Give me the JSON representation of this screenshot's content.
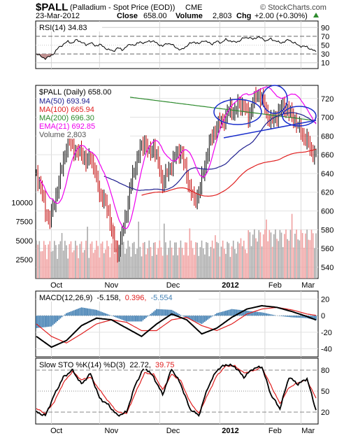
{
  "header": {
    "ticker": "$PALL",
    "name": "(Palladium - Spot Price (EOD))",
    "exchange": "CME",
    "watermark": "© StockCharts.com",
    "date": "23-Mar-2012",
    "close_label": "Close",
    "close_value": "658.00",
    "volume_label": "Volume",
    "volume_value": "2,803",
    "chg_label": "Chg",
    "chg_value": "+2.00 (+0.30%)",
    "chg_arrow": "up-triangle-icon"
  },
  "rsi": {
    "label": "RSI(14) 34.83",
    "axis_ticks": [
      "90",
      "70",
      "50",
      "30",
      "10"
    ],
    "ylim": [
      0,
      100
    ],
    "overbought": 70,
    "oversold": 30
  },
  "price": {
    "legend": {
      "title": "$PALL (Daily) 658.00",
      "ma50": "MA(50) 693.94",
      "ma100": "MA(100) 665.94",
      "ma200": "MA(200) 696.30",
      "ema21": "EMA(21) 692.85",
      "volume": "Volume 2,803"
    },
    "right_ticks": [
      "720",
      "700",
      "680",
      "660",
      "640",
      "620",
      "600",
      "580",
      "560",
      "540"
    ],
    "left_ticks": [
      "10000",
      "7500",
      "5000",
      "2500"
    ],
    "ylim": [
      528,
      734
    ],
    "volume_max": 14000
  },
  "macd": {
    "label_prefix": "MACD(12,26,9)",
    "macd_value": "-5.158,",
    "signal_value": "0.396,",
    "hist_value": "-5.554",
    "axis_ticks": [
      "20",
      "0",
      "-20",
      "-40"
    ],
    "ylim": [
      -48,
      28
    ]
  },
  "sto": {
    "label_prefix": "Slow STO %K(14) %D(3)",
    "k_value": "22.72,",
    "d_value": "39.75",
    "axis_ticks": [
      "80",
      "50",
      "20"
    ],
    "ylim": [
      5,
      95
    ]
  },
  "x_axis": {
    "labels_top": [
      "Oct",
      "Nov",
      "Dec",
      "2012",
      "Feb",
      "Mar"
    ],
    "labels_bottom": [
      "Oct",
      "Nov",
      "Dec",
      "2012",
      "Feb",
      "Mar"
    ]
  },
  "colors": {
    "ma50": "#1f1f8f",
    "ma100": "#e02020",
    "ma200": "#2e8b2e",
    "ema21": "#ee00ee",
    "vol_up": "#a9a9a9",
    "vol_down": "#f0a0a0",
    "bar_up": "#000000",
    "bar_down": "#c00000",
    "rsi_fill": "#c09090",
    "macd_hist": "#4682b4",
    "signal": "#e02020",
    "highlight": "#1a2ecc"
  },
  "chart_data": [
    {
      "type": "line",
      "title": "RSI(14) 34.83",
      "x": [
        0,
        3,
        6,
        9,
        12,
        15,
        18,
        21,
        24,
        27,
        30,
        33,
        36,
        39,
        42,
        45,
        48,
        51,
        54,
        57,
        60,
        63,
        66,
        69,
        72,
        75,
        78,
        81,
        84,
        87,
        90,
        93,
        96,
        99,
        102,
        105,
        108,
        111,
        114,
        117,
        120,
        123,
        126,
        129,
        132,
        135,
        138,
        141,
        144,
        147,
        150,
        153,
        156,
        159,
        162,
        165,
        168,
        171,
        174,
        177,
        180,
        183,
        186
      ],
      "series": [
        {
          "name": "RSI(14)",
          "values": [
            31,
            24,
            20,
            24,
            33,
            45,
            52,
            58,
            55,
            62,
            57,
            50,
            56,
            48,
            52,
            45,
            40,
            36,
            44,
            39,
            47,
            52,
            50,
            58,
            54,
            60,
            58,
            53,
            47,
            55,
            51,
            45,
            38,
            46,
            53,
            58,
            52,
            61,
            56,
            53,
            58,
            56,
            62,
            60,
            56,
            60,
            66,
            68,
            63,
            69,
            65,
            60,
            64,
            60,
            55,
            58,
            62,
            56,
            50,
            47,
            46,
            40,
            35
          ]
        }
      ]
    },
    {
      "type": "line",
      "title": "$PALL (Daily) 658.00",
      "x": [
        0,
        3,
        6,
        9,
        12,
        15,
        18,
        21,
        24,
        27,
        30,
        33,
        36,
        39,
        42,
        45,
        48,
        51,
        54,
        57,
        60,
        63,
        66,
        69,
        72,
        75,
        78,
        81,
        84,
        87,
        90,
        93,
        96,
        99,
        102,
        105,
        108,
        111,
        114,
        117,
        120,
        123,
        126,
        129,
        132,
        135,
        138,
        141,
        144,
        147,
        150,
        153,
        156,
        159,
        162,
        165,
        168,
        171,
        174,
        177,
        180,
        183,
        186
      ],
      "series": [
        {
          "name": "Close",
          "values": [
            640,
            625,
            600,
            590,
            610,
            630,
            655,
            675,
            670,
            660,
            665,
            650,
            660,
            640,
            620,
            610,
            600,
            570,
            555,
            575,
            600,
            630,
            650,
            665,
            675,
            660,
            670,
            650,
            630,
            640,
            650,
            660,
            665,
            645,
            625,
            610,
            620,
            640,
            665,
            680,
            690,
            695,
            700,
            710,
            705,
            715,
            712,
            700,
            715,
            725,
            720,
            705,
            695,
            700,
            708,
            712,
            705,
            700,
            690,
            682,
            674,
            665,
            658
          ]
        },
        {
          "name": "MA(50)",
          "values": [
            null,
            null,
            null,
            null,
            null,
            null,
            null,
            null,
            null,
            null,
            null,
            null,
            null,
            null,
            null,
            null,
            null,
            null,
            null,
            null,
            null,
            null,
            null,
            null,
            null,
            null,
            null,
            null,
            null,
            null,
            null,
            null,
            null,
            null,
            null,
            null,
            null,
            null,
            null,
            null,
            null,
            null,
            null,
            null,
            null,
            null,
            null,
            null,
            null,
            null,
            null,
            null,
            null,
            null,
            null,
            null,
            null,
            null,
            null,
            null,
            null,
            null,
            693.94
          ]
        },
        {
          "name": "MA(100)",
          "values": [
            null,
            null,
            null,
            null,
            null,
            null,
            null,
            null,
            null,
            null,
            null,
            null,
            null,
            null,
            null,
            null,
            null,
            null,
            null,
            null,
            null,
            null,
            null,
            null,
            null,
            null,
            null,
            null,
            null,
            null,
            null,
            null,
            null,
            null,
            null,
            null,
            null,
            null,
            null,
            null,
            null,
            null,
            null,
            null,
            null,
            null,
            null,
            null,
            null,
            null,
            null,
            null,
            null,
            null,
            null,
            null,
            null,
            null,
            null,
            null,
            null,
            null,
            665.94
          ]
        },
        {
          "name": "MA(200)",
          "values": [
            null,
            null,
            null,
            null,
            null,
            null,
            null,
            null,
            null,
            null,
            null,
            null,
            null,
            null,
            null,
            null,
            null,
            null,
            null,
            null,
            null,
            null,
            null,
            null,
            null,
            null,
            null,
            null,
            null,
            null,
            null,
            null,
            null,
            null,
            null,
            null,
            null,
            null,
            null,
            null,
            null,
            null,
            null,
            null,
            null,
            null,
            null,
            null,
            null,
            null,
            null,
            null,
            null,
            null,
            null,
            null,
            null,
            null,
            null,
            null,
            null,
            null,
            696.3
          ]
        },
        {
          "name": "EMA(21)",
          "values": [
            null,
            null,
            null,
            null,
            null,
            null,
            null,
            null,
            null,
            null,
            null,
            null,
            null,
            null,
            null,
            null,
            null,
            null,
            null,
            null,
            null,
            null,
            null,
            null,
            null,
            null,
            null,
            null,
            null,
            null,
            null,
            null,
            null,
            null,
            null,
            null,
            null,
            null,
            null,
            null,
            null,
            null,
            null,
            null,
            null,
            null,
            null,
            null,
            null,
            null,
            null,
            null,
            null,
            null,
            null,
            null,
            null,
            null,
            null,
            null,
            null,
            null,
            692.85
          ]
        }
      ],
      "ylim": [
        528,
        734
      ]
    },
    {
      "type": "line",
      "title": "MACD(12,26,9) -5.158, 0.396, -5.554",
      "x": [
        0,
        10,
        20,
        30,
        40,
        50,
        60,
        70,
        80,
        90,
        100,
        110,
        120,
        130,
        140,
        150,
        160,
        170,
        180,
        186
      ],
      "series": [
        {
          "name": "MACD",
          "values": [
            -25,
            -38,
            -30,
            -12,
            -3,
            -5,
            -15,
            -25,
            -10,
            2,
            -5,
            -22,
            -15,
            -2,
            8,
            12,
            10,
            5,
            -1,
            -5.158
          ]
        },
        {
          "name": "Signal",
          "values": [
            -10,
            -25,
            -33,
            -22,
            -10,
            -5,
            -8,
            -18,
            -18,
            -5,
            -2,
            -12,
            -18,
            -10,
            2,
            8,
            10,
            7,
            2,
            0.396
          ]
        },
        {
          "name": "Histogram",
          "values": [
            -15,
            -13,
            3,
            10,
            7,
            0,
            -7,
            -7,
            8,
            7,
            -3,
            -10,
            3,
            8,
            6,
            4,
            0,
            -2,
            -3,
            -5.554
          ]
        }
      ],
      "ylim": [
        -48,
        28
      ]
    },
    {
      "type": "line",
      "title": "Slow STO %K(14) %D(3) 22.72, 39.75",
      "x": [
        0,
        6,
        12,
        18,
        24,
        30,
        36,
        42,
        48,
        54,
        60,
        66,
        72,
        78,
        84,
        90,
        96,
        102,
        108,
        114,
        120,
        126,
        132,
        138,
        144,
        150,
        156,
        162,
        168,
        174,
        180,
        186
      ],
      "series": [
        {
          "name": "%K",
          "values": [
            20,
            15,
            45,
            70,
            80,
            60,
            75,
            40,
            30,
            15,
            20,
            60,
            85,
            70,
            45,
            82,
            60,
            25,
            15,
            55,
            80,
            88,
            85,
            70,
            82,
            85,
            45,
            25,
            70,
            60,
            68,
            22.72
          ]
        },
        {
          "name": "%D",
          "values": [
            25,
            18,
            35,
            62,
            78,
            66,
            70,
            52,
            35,
            20,
            18,
            48,
            76,
            74,
            52,
            74,
            65,
            35,
            18,
            45,
            72,
            86,
            86,
            76,
            79,
            84,
            58,
            32,
            55,
            62,
            66,
            39.75
          ]
        }
      ],
      "ylim": [
        5,
        95
      ]
    }
  ]
}
